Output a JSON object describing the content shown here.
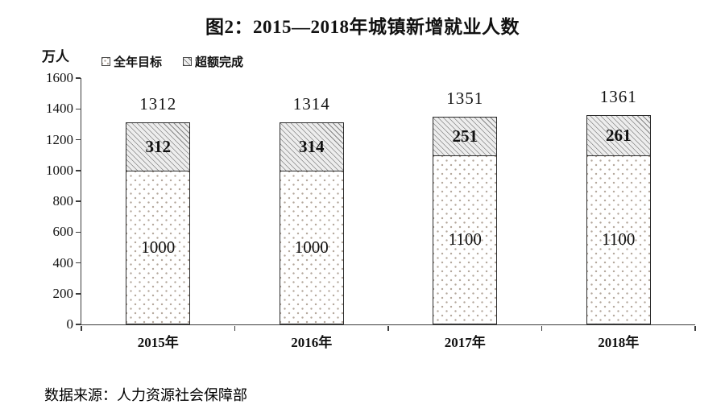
{
  "source": "数据来源：人力资源社会保障部",
  "chart_data": {
    "type": "bar",
    "stacked": true,
    "title": "图2：2015—2018年城镇新增就业人数",
    "unit_label": "万人",
    "categories": [
      "2015年",
      "2016年",
      "2017年",
      "2018年"
    ],
    "series": [
      {
        "name": "全年目标",
        "pattern": "dots",
        "values": [
          1000,
          1000,
          1100,
          1100
        ]
      },
      {
        "name": "超额完成",
        "pattern": "hatch",
        "values": [
          312,
          314,
          251,
          261
        ]
      }
    ],
    "totals": [
      1312,
      1314,
      1351,
      1361
    ],
    "ylim": [
      0,
      1600
    ],
    "ytick_step": 200,
    "grid": false,
    "legend_position": "top-left",
    "colors": {
      "axis": "#3c3c3c",
      "bar_border": "#2a2a2a",
      "hatch_bg": "#ededed",
      "dot": "#b3a79b",
      "text": "#111111"
    }
  }
}
